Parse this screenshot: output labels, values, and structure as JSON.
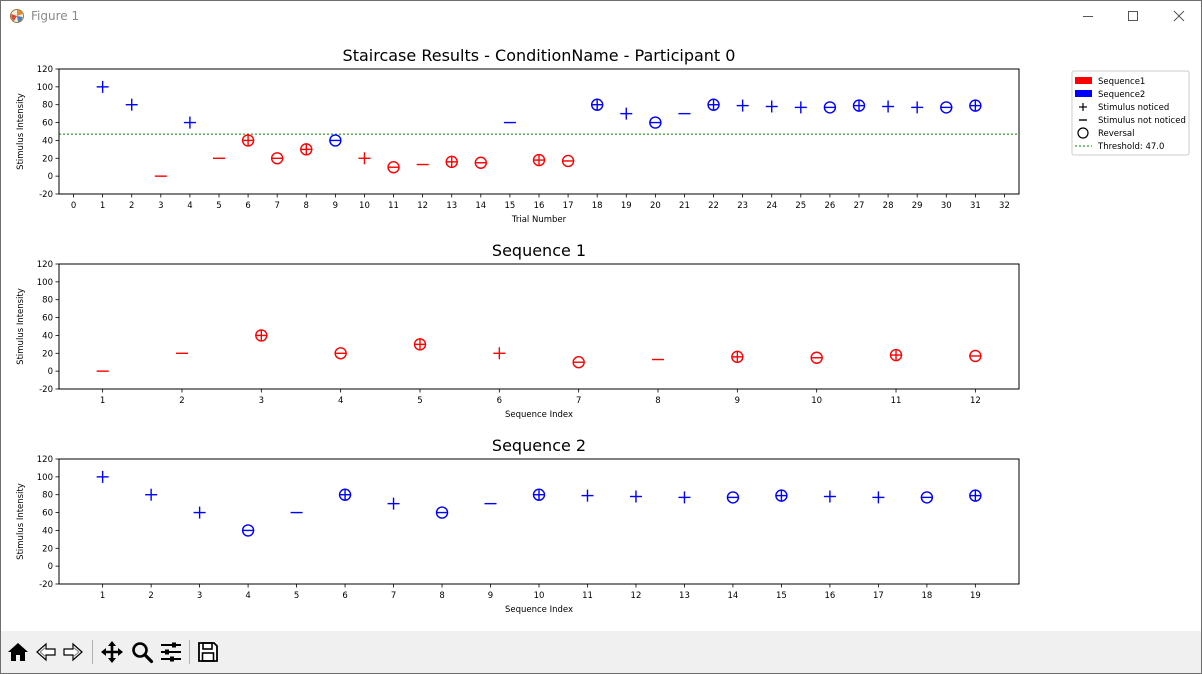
{
  "window": {
    "title": "Figure 1"
  },
  "colors": {
    "seq1": "#ff0000",
    "seq2": "#0000ff",
    "threshold": "#008000"
  },
  "toolbar": {
    "buttons": [
      {
        "name": "home-button",
        "icon": "home-icon"
      },
      {
        "name": "back-button",
        "icon": "back-arrow-icon"
      },
      {
        "name": "forward-button",
        "icon": "forward-arrow-icon"
      },
      {
        "name": "pan-button",
        "icon": "move-icon"
      },
      {
        "name": "zoom-button",
        "icon": "magnifier-icon"
      },
      {
        "name": "configure-subplots-button",
        "icon": "sliders-icon"
      },
      {
        "name": "save-button",
        "icon": "save-icon"
      }
    ]
  },
  "chart_data": [
    {
      "type": "scatter",
      "title": "Staircase Results - ConditionName - Participant 0",
      "xlabel": "Trial Number",
      "ylabel": "Stimulus Intensity",
      "xlim": [
        -0.5,
        32.5
      ],
      "ylim": [
        -20,
        120
      ],
      "xticks": [
        0,
        1,
        2,
        3,
        4,
        5,
        6,
        7,
        8,
        9,
        10,
        11,
        12,
        13,
        14,
        15,
        16,
        17,
        18,
        19,
        20,
        21,
        22,
        23,
        24,
        25,
        26,
        27,
        28,
        29,
        30,
        31,
        32
      ],
      "yticks": [
        -20,
        0,
        20,
        40,
        60,
        80,
        100,
        120
      ],
      "threshold": 47.0,
      "legend": {
        "position": "outside-right",
        "entries": [
          {
            "label": "Sequence1",
            "kind": "patch",
            "color": "#ff0000"
          },
          {
            "label": "Sequence2",
            "kind": "patch",
            "color": "#0000ff"
          },
          {
            "label": "Stimulus noticed",
            "kind": "plus"
          },
          {
            "label": "Stimulus not noticed",
            "kind": "minus"
          },
          {
            "label": "Reversal",
            "kind": "circle"
          },
          {
            "label": "Threshold: 47.0",
            "kind": "dotted",
            "color": "#008000"
          }
        ]
      },
      "series": [
        {
          "seq": 1,
          "points": [
            {
              "x": 3,
              "y": 0,
              "noticed": false,
              "reversal": false
            },
            {
              "x": 5,
              "y": 20,
              "noticed": false,
              "reversal": false
            },
            {
              "x": 6,
              "y": 40,
              "noticed": true,
              "reversal": true
            },
            {
              "x": 7,
              "y": 20,
              "noticed": false,
              "reversal": true
            },
            {
              "x": 8,
              "y": 30,
              "noticed": true,
              "reversal": true
            },
            {
              "x": 10,
              "y": 20,
              "noticed": true,
              "reversal": false
            },
            {
              "x": 11,
              "y": 10,
              "noticed": false,
              "reversal": true
            },
            {
              "x": 12,
              "y": 13,
              "noticed": false,
              "reversal": false
            },
            {
              "x": 13,
              "y": 16,
              "noticed": true,
              "reversal": true
            },
            {
              "x": 14,
              "y": 15,
              "noticed": false,
              "reversal": true
            },
            {
              "x": 16,
              "y": 18,
              "noticed": true,
              "reversal": true
            },
            {
              "x": 17,
              "y": 17,
              "noticed": false,
              "reversal": true
            }
          ]
        },
        {
          "seq": 2,
          "points": [
            {
              "x": 1,
              "y": 100,
              "noticed": true,
              "reversal": false
            },
            {
              "x": 2,
              "y": 80,
              "noticed": true,
              "reversal": false
            },
            {
              "x": 4,
              "y": 60,
              "noticed": true,
              "reversal": false
            },
            {
              "x": 9,
              "y": 40,
              "noticed": false,
              "reversal": true
            },
            {
              "x": 15,
              "y": 60,
              "noticed": false,
              "reversal": false
            },
            {
              "x": 18,
              "y": 80,
              "noticed": true,
              "reversal": true
            },
            {
              "x": 19,
              "y": 70,
              "noticed": true,
              "reversal": false
            },
            {
              "x": 20,
              "y": 60,
              "noticed": false,
              "reversal": true
            },
            {
              "x": 21,
              "y": 70,
              "noticed": false,
              "reversal": false
            },
            {
              "x": 22,
              "y": 80,
              "noticed": true,
              "reversal": true
            },
            {
              "x": 23,
              "y": 79,
              "noticed": true,
              "reversal": false
            },
            {
              "x": 24,
              "y": 78,
              "noticed": true,
              "reversal": false
            },
            {
              "x": 25,
              "y": 77,
              "noticed": true,
              "reversal": false
            },
            {
              "x": 26,
              "y": 77,
              "noticed": false,
              "reversal": true
            },
            {
              "x": 27,
              "y": 79,
              "noticed": true,
              "reversal": true
            },
            {
              "x": 28,
              "y": 78,
              "noticed": true,
              "reversal": false
            },
            {
              "x": 29,
              "y": 77,
              "noticed": true,
              "reversal": false
            },
            {
              "x": 30,
              "y": 77,
              "noticed": false,
              "reversal": true
            },
            {
              "x": 31,
              "y": 79,
              "noticed": true,
              "reversal": true
            }
          ]
        }
      ]
    },
    {
      "type": "scatter",
      "title": "Sequence 1",
      "xlabel": "Sequence Index",
      "ylabel": "Stimulus Intensity",
      "xlim": [
        0.45,
        12.55
      ],
      "ylim": [
        -20,
        120
      ],
      "xticks": [
        1,
        2,
        3,
        4,
        5,
        6,
        7,
        8,
        9,
        10,
        11,
        12
      ],
      "yticks": [
        -20,
        0,
        20,
        40,
        60,
        80,
        100,
        120
      ],
      "series": [
        {
          "seq": 1,
          "points": [
            {
              "x": 1,
              "y": 0,
              "noticed": false,
              "reversal": false
            },
            {
              "x": 2,
              "y": 20,
              "noticed": false,
              "reversal": false
            },
            {
              "x": 3,
              "y": 40,
              "noticed": true,
              "reversal": true
            },
            {
              "x": 4,
              "y": 20,
              "noticed": false,
              "reversal": true
            },
            {
              "x": 5,
              "y": 30,
              "noticed": true,
              "reversal": true
            },
            {
              "x": 6,
              "y": 20,
              "noticed": true,
              "reversal": false
            },
            {
              "x": 7,
              "y": 10,
              "noticed": false,
              "reversal": true
            },
            {
              "x": 8,
              "y": 13,
              "noticed": false,
              "reversal": false
            },
            {
              "x": 9,
              "y": 16,
              "noticed": true,
              "reversal": true
            },
            {
              "x": 10,
              "y": 15,
              "noticed": false,
              "reversal": true
            },
            {
              "x": 11,
              "y": 18,
              "noticed": true,
              "reversal": true
            },
            {
              "x": 12,
              "y": 17,
              "noticed": false,
              "reversal": true
            }
          ]
        }
      ]
    },
    {
      "type": "scatter",
      "title": "Sequence 2",
      "xlabel": "Sequence Index",
      "ylabel": "Stimulus Intensity",
      "xlim": [
        0.1,
        19.9
      ],
      "ylim": [
        -20,
        120
      ],
      "xticks": [
        1,
        2,
        3,
        4,
        5,
        6,
        7,
        8,
        9,
        10,
        11,
        12,
        13,
        14,
        15,
        16,
        17,
        18,
        19
      ],
      "yticks": [
        -20,
        0,
        20,
        40,
        60,
        80,
        100,
        120
      ],
      "series": [
        {
          "seq": 2,
          "points": [
            {
              "x": 1,
              "y": 100,
              "noticed": true,
              "reversal": false
            },
            {
              "x": 2,
              "y": 80,
              "noticed": true,
              "reversal": false
            },
            {
              "x": 3,
              "y": 60,
              "noticed": true,
              "reversal": false
            },
            {
              "x": 4,
              "y": 40,
              "noticed": false,
              "reversal": true
            },
            {
              "x": 5,
              "y": 60,
              "noticed": false,
              "reversal": false
            },
            {
              "x": 6,
              "y": 80,
              "noticed": true,
              "reversal": true
            },
            {
              "x": 7,
              "y": 70,
              "noticed": true,
              "reversal": false
            },
            {
              "x": 8,
              "y": 60,
              "noticed": false,
              "reversal": true
            },
            {
              "x": 9,
              "y": 70,
              "noticed": false,
              "reversal": false
            },
            {
              "x": 10,
              "y": 80,
              "noticed": true,
              "reversal": true
            },
            {
              "x": 11,
              "y": 79,
              "noticed": true,
              "reversal": false
            },
            {
              "x": 12,
              "y": 78,
              "noticed": true,
              "reversal": false
            },
            {
              "x": 13,
              "y": 77,
              "noticed": true,
              "reversal": false
            },
            {
              "x": 14,
              "y": 77,
              "noticed": false,
              "reversal": true
            },
            {
              "x": 15,
              "y": 79,
              "noticed": true,
              "reversal": true
            },
            {
              "x": 16,
              "y": 78,
              "noticed": true,
              "reversal": false
            },
            {
              "x": 17,
              "y": 77,
              "noticed": true,
              "reversal": false
            },
            {
              "x": 18,
              "y": 77,
              "noticed": false,
              "reversal": true
            },
            {
              "x": 19,
              "y": 79,
              "noticed": true,
              "reversal": true
            }
          ]
        }
      ]
    }
  ]
}
